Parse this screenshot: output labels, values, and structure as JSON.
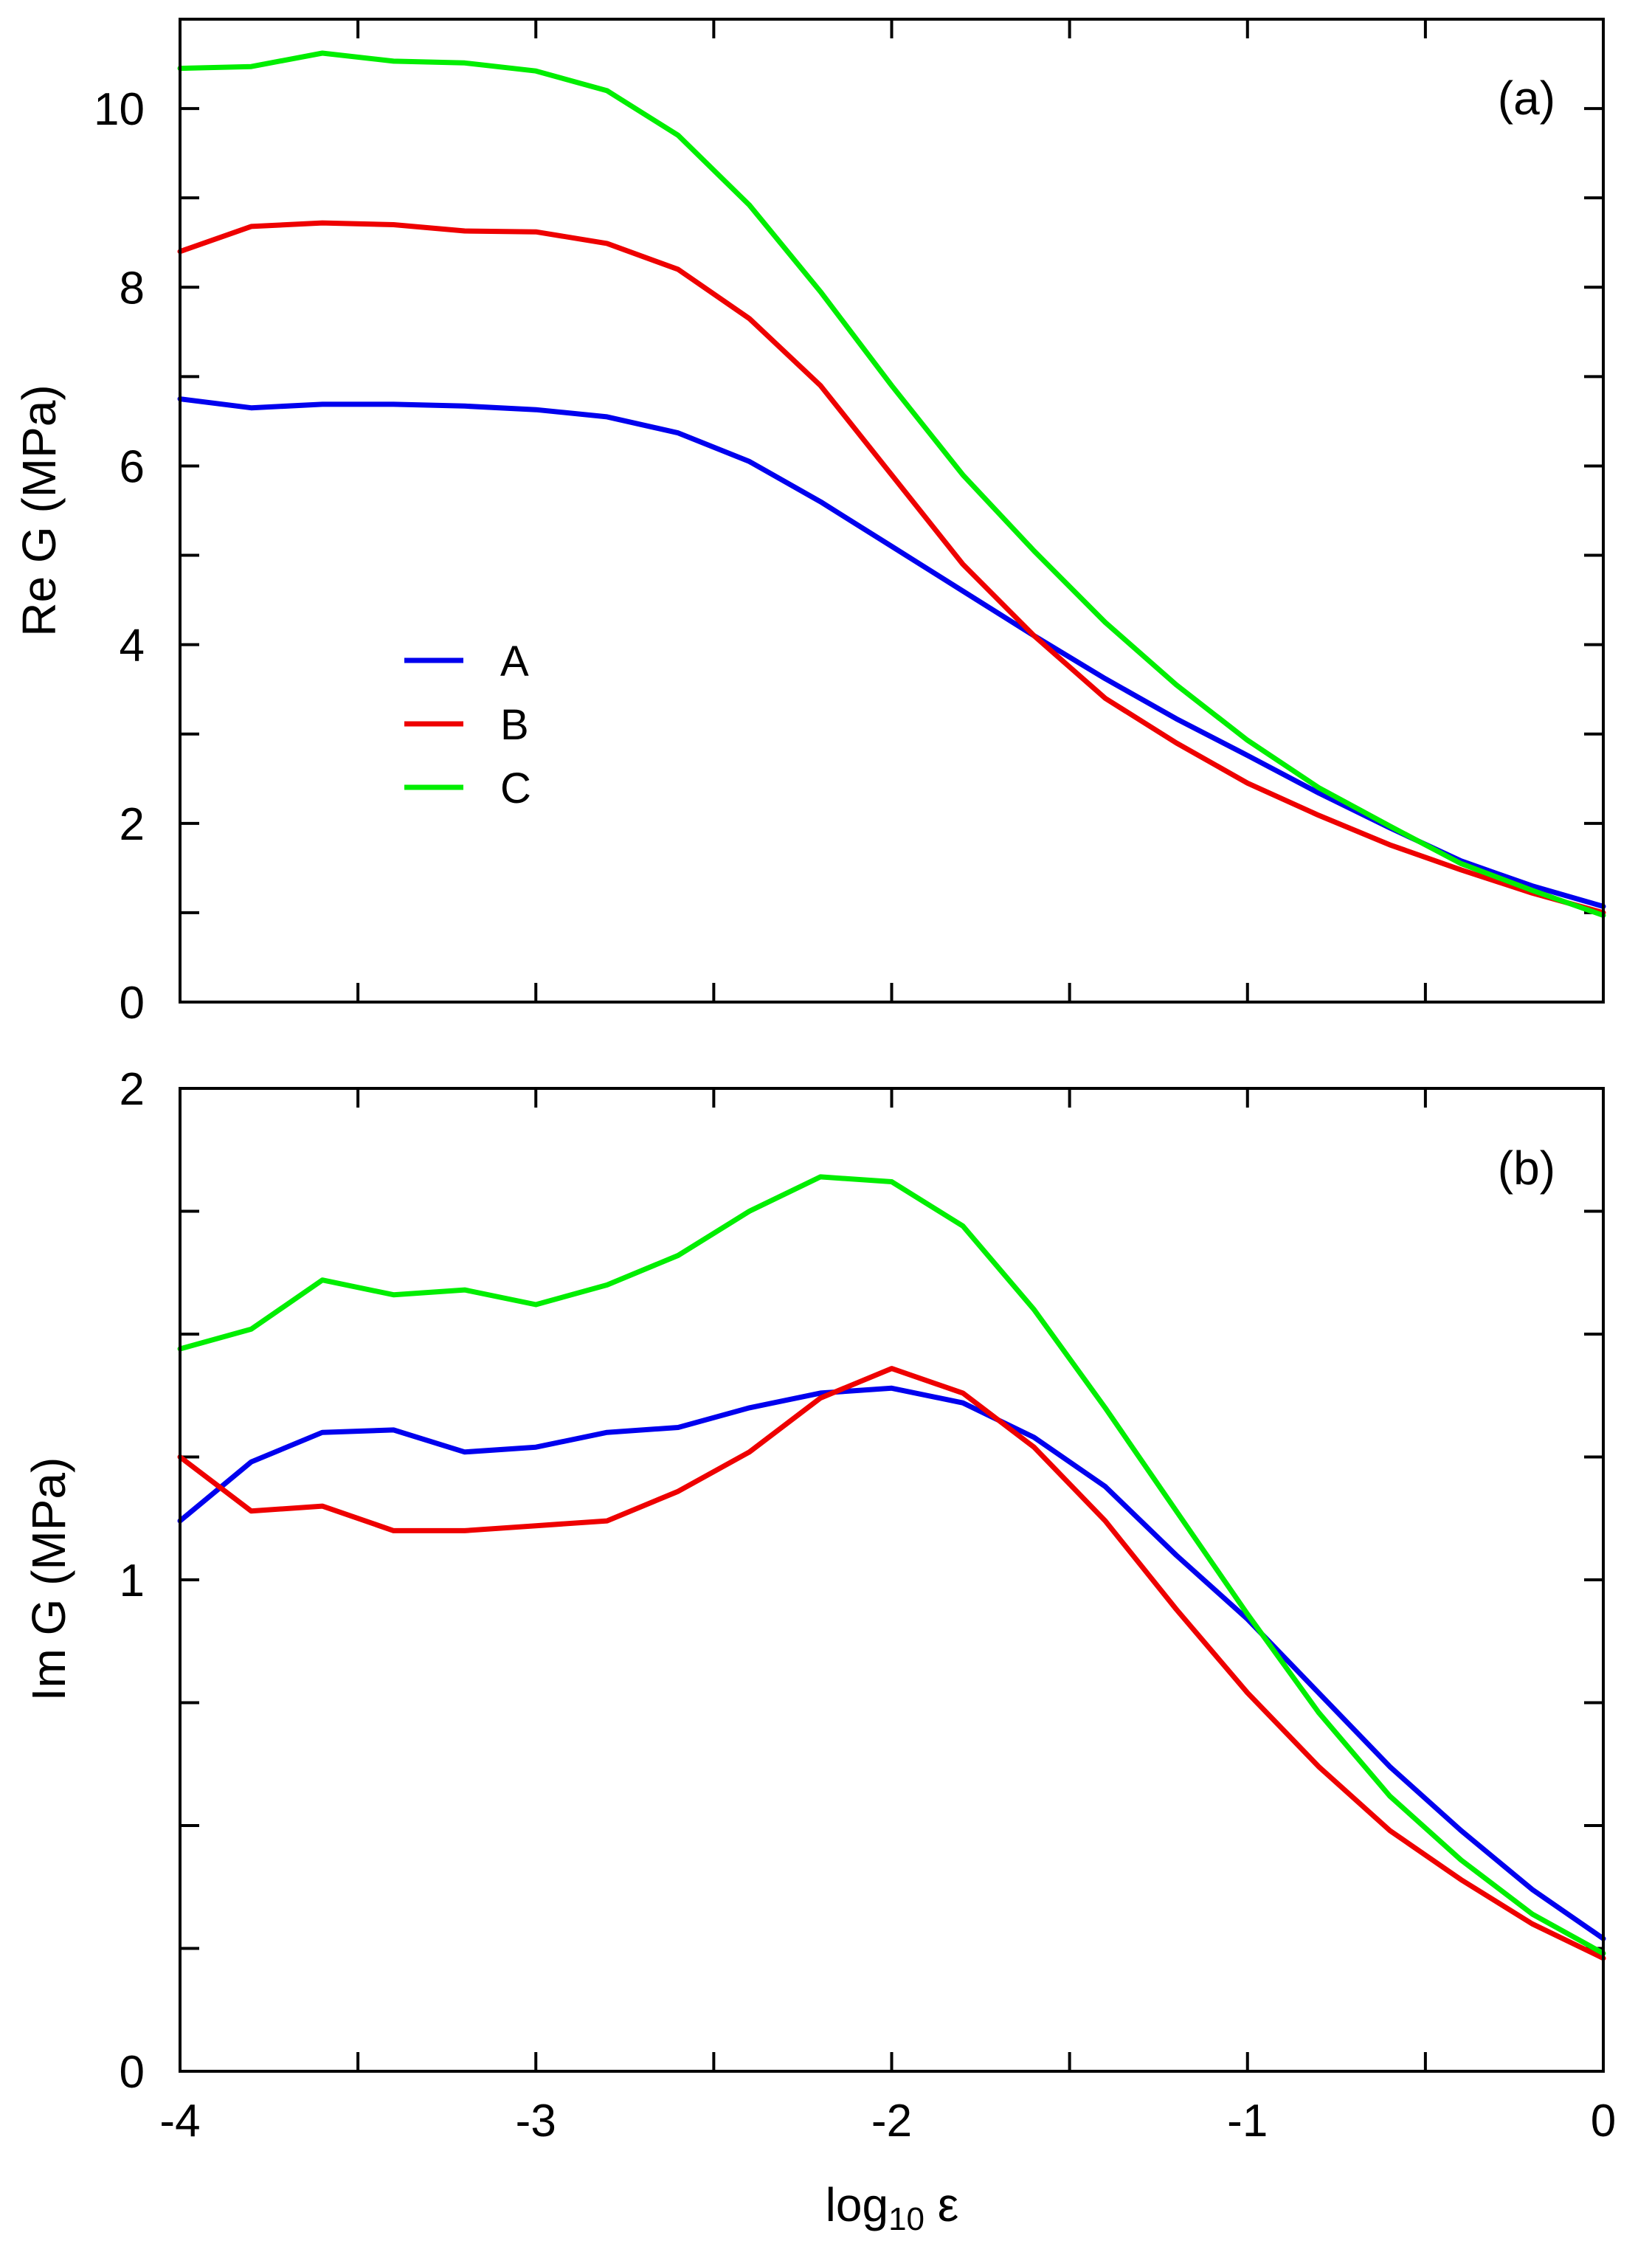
{
  "chart_data": [
    {
      "type": "line",
      "panel_label": "(a)",
      "xlabel": "",
      "ylabel": "Re G  (MPa)",
      "xlim": [
        -4,
        0
      ],
      "ylim": [
        0,
        11
      ],
      "y_ticks": [
        "0",
        "2",
        "4",
        "6",
        "8",
        "10"
      ],
      "legend": {
        "placement": "center-left"
      },
      "series": [
        {
          "name": "A",
          "color": "#0000ee",
          "x": [
            -4.0,
            -3.8,
            -3.6,
            -3.4,
            -3.2,
            -3.0,
            -2.8,
            -2.6,
            -2.4,
            -2.2,
            -2.0,
            -1.8,
            -1.6,
            -1.4,
            -1.2,
            -1.0,
            -0.8,
            -0.6,
            -0.4,
            -0.2,
            0.0
          ],
          "y": [
            6.75,
            6.65,
            6.69,
            6.69,
            6.67,
            6.63,
            6.55,
            6.37,
            6.05,
            5.6,
            5.1,
            4.6,
            4.1,
            3.62,
            3.17,
            2.76,
            2.34,
            1.95,
            1.58,
            1.3,
            1.07
          ]
        },
        {
          "name": "B",
          "color": "#ee0000",
          "x": [
            -4.0,
            -3.8,
            -3.6,
            -3.4,
            -3.2,
            -3.0,
            -2.8,
            -2.6,
            -2.4,
            -2.2,
            -2.0,
            -1.8,
            -1.6,
            -1.4,
            -1.2,
            -1.0,
            -0.8,
            -0.6,
            -0.4,
            -0.2,
            0.0
          ],
          "y": [
            8.4,
            8.68,
            8.72,
            8.7,
            8.63,
            8.62,
            8.49,
            8.2,
            7.65,
            6.9,
            5.9,
            4.9,
            4.1,
            3.4,
            2.9,
            2.45,
            2.09,
            1.76,
            1.48,
            1.22,
            1.0
          ]
        },
        {
          "name": "C",
          "color": "#00ee00",
          "x": [
            -4.0,
            -3.8,
            -3.6,
            -3.4,
            -3.2,
            -3.0,
            -2.8,
            -2.6,
            -2.4,
            -2.2,
            -2.0,
            -1.8,
            -1.6,
            -1.4,
            -1.2,
            -1.0,
            -0.8,
            -0.6,
            -0.4,
            -0.2,
            0.0
          ],
          "y": [
            10.45,
            10.47,
            10.62,
            10.53,
            10.51,
            10.42,
            10.2,
            9.7,
            8.92,
            7.95,
            6.9,
            5.9,
            5.05,
            4.25,
            3.55,
            2.93,
            2.4,
            1.97,
            1.55,
            1.25,
            0.97
          ]
        }
      ]
    },
    {
      "type": "line",
      "panel_label": "(b)",
      "xlabel": "log₁₀ ε",
      "ylabel": "Im G  (MPa)",
      "xlim": [
        -4,
        0
      ],
      "ylim": [
        0,
        2
      ],
      "x_ticks": [
        "-4",
        "-3",
        "-2",
        "-1",
        "0"
      ],
      "y_ticks": [
        "0",
        "1",
        "2"
      ],
      "series": [
        {
          "name": "A",
          "color": "#0000ee",
          "x": [
            -4.0,
            -3.8,
            -3.6,
            -3.4,
            -3.2,
            -3.0,
            -2.8,
            -2.6,
            -2.4,
            -2.2,
            -2.0,
            -1.8,
            -1.6,
            -1.4,
            -1.2,
            -1.0,
            -0.8,
            -0.6,
            -0.4,
            -0.2,
            0.0
          ],
          "y": [
            1.12,
            1.24,
            1.3,
            1.305,
            1.26,
            1.27,
            1.3,
            1.31,
            1.35,
            1.38,
            1.39,
            1.36,
            1.29,
            1.19,
            1.05,
            0.92,
            0.77,
            0.62,
            0.49,
            0.37,
            0.27
          ]
        },
        {
          "name": "B",
          "color": "#ee0000",
          "x": [
            -4.0,
            -3.8,
            -3.6,
            -3.4,
            -3.2,
            -3.0,
            -2.8,
            -2.6,
            -2.4,
            -2.2,
            -2.0,
            -1.8,
            -1.6,
            -1.4,
            -1.2,
            -1.0,
            -0.8,
            -0.6,
            -0.4,
            -0.2,
            0.0
          ],
          "y": [
            1.25,
            1.14,
            1.15,
            1.1,
            1.1,
            1.11,
            1.12,
            1.18,
            1.26,
            1.37,
            1.43,
            1.38,
            1.27,
            1.12,
            0.94,
            0.77,
            0.62,
            0.49,
            0.39,
            0.3,
            0.23
          ]
        },
        {
          "name": "C",
          "color": "#00ee00",
          "x": [
            -4.0,
            -3.8,
            -3.6,
            -3.4,
            -3.2,
            -3.0,
            -2.8,
            -2.6,
            -2.4,
            -2.2,
            -2.0,
            -1.8,
            -1.6,
            -1.4,
            -1.2,
            -1.0,
            -0.8,
            -0.6,
            -0.4,
            -0.2,
            0.0
          ],
          "y": [
            1.47,
            1.51,
            1.61,
            1.58,
            1.59,
            1.56,
            1.6,
            1.66,
            1.75,
            1.82,
            1.81,
            1.72,
            1.55,
            1.35,
            1.14,
            0.93,
            0.73,
            0.56,
            0.43,
            0.32,
            0.24
          ]
        }
      ]
    }
  ]
}
